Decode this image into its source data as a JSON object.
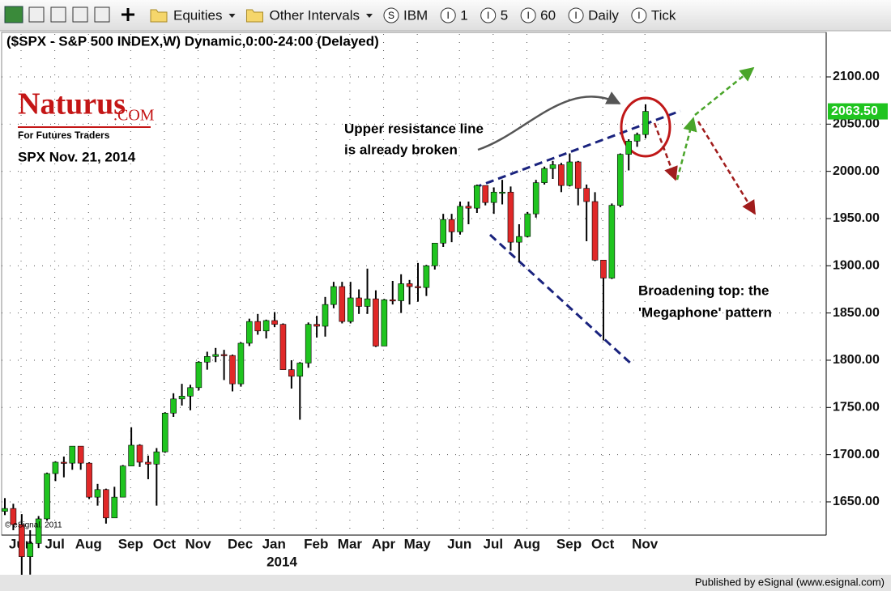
{
  "toolbar": [
    {
      "label": "Equities"
    },
    {
      "label": "Other Intervals"
    },
    {
      "icon": "S",
      "label": "IBM"
    },
    {
      "icon": "I",
      "label": "1"
    },
    {
      "icon": "I",
      "label": "5"
    },
    {
      "icon": "I",
      "label": "60"
    },
    {
      "icon": "I",
      "label": "Daily"
    },
    {
      "icon": "I",
      "label": "Tick"
    }
  ],
  "footer": "Published by eSignal (www.esignal.com)",
  "chart_data": {
    "type": "candlestick",
    "title": "($SPX - S&P 500 INDEX,W) Dynamic,0:00-24:00 (Delayed)",
    "logo": {
      "name": "Naturus",
      "suffix": ".COM",
      "tagline": "For Futures Traders"
    },
    "subtitle": "SPX Nov. 21, 2014",
    "copyright": "© eSignal, 2011",
    "annotations": [
      "Upper resistance line",
      "is already broken",
      "Broadening top: the",
      "'Megaphone' pattern"
    ],
    "year_label": "2014",
    "categories": [
      "Jun",
      null,
      null,
      null,
      "Jul",
      null,
      null,
      null,
      "Aug",
      null,
      null,
      null,
      null,
      "Sep",
      null,
      null,
      null,
      "Oct",
      null,
      null,
      null,
      "Nov",
      null,
      null,
      null,
      null,
      "Dec",
      null,
      null,
      null,
      "Jan",
      null,
      null,
      null,
      null,
      "Feb",
      null,
      null,
      null,
      "Mar",
      null,
      null,
      null,
      "Apr",
      null,
      null,
      null,
      "May",
      null,
      null,
      null,
      null,
      "Jun",
      null,
      null,
      null,
      "Jul",
      null,
      null,
      null,
      "Aug",
      null,
      null,
      null,
      null,
      "Sep",
      null,
      null,
      null,
      "Oct",
      null,
      null,
      null,
      null,
      "Nov",
      null,
      null
    ],
    "open": [
      1640,
      1643,
      1626,
      1592,
      1606,
      1632,
      1680,
      1692,
      1691,
      1709,
      1691,
      1655,
      1663,
      1633,
      1655,
      1688,
      1710,
      1692,
      1690,
      1703,
      1744,
      1759,
      1762,
      1771,
      1798,
      1804,
      1806,
      1805,
      1775,
      1818,
      1841,
      1831,
      1842,
      1838,
      1790,
      1783,
      1797,
      1838,
      1836,
      1859,
      1878,
      1841,
      1866,
      1857,
      1865,
      1815,
      1864,
      1863,
      1881,
      1878,
      1877,
      1900,
      1924,
      1949,
      1936,
      1963,
      1961,
      1985,
      1967,
      1978,
      1978,
      1925,
      1931,
      1955,
      1988,
      2003,
      2007,
      1985,
      2010,
      1982,
      1968,
      1906,
      1887,
      1964,
      2018,
      2032,
      2039
    ],
    "high": [
      1654,
      1648,
      1637,
      1620,
      1635,
      1681,
      1693,
      1698,
      1709,
      1709,
      1692,
      1669,
      1664,
      1666,
      1689,
      1729,
      1711,
      1699,
      1707,
      1745,
      1765,
      1775,
      1774,
      1799,
      1809,
      1813,
      1811,
      1806,
      1819,
      1844,
      1849,
      1843,
      1851,
      1839,
      1800,
      1798,
      1840,
      1847,
      1867,
      1883,
      1883,
      1883,
      1875,
      1897,
      1874,
      1865,
      1884,
      1891,
      1885,
      1903,
      1901,
      1924,
      1955,
      1955,
      1968,
      1968,
      1986,
      1985,
      1983,
      1991,
      1984,
      1944,
      1957,
      1991,
      2005,
      2011,
      2009,
      2019,
      2011,
      1986,
      1978,
      1906,
      1966,
      2019,
      2034,
      2041,
      2071
    ],
    "low": [
      1636,
      1620,
      1560,
      1573,
      1601,
      1630,
      1672,
      1676,
      1684,
      1684,
      1653,
      1646,
      1627,
      1633,
      1655,
      1688,
      1687,
      1674,
      1646,
      1702,
      1740,
      1752,
      1747,
      1768,
      1790,
      1798,
      1779,
      1767,
      1772,
      1815,
      1827,
      1823,
      1835,
      1790,
      1770,
      1737,
      1792,
      1824,
      1825,
      1855,
      1839,
      1839,
      1849,
      1849,
      1814,
      1815,
      1859,
      1850,
      1859,
      1862,
      1868,
      1896,
      1920,
      1925,
      1933,
      1944,
      1956,
      1964,
      1955,
      1965,
      1916,
      1904,
      1930,
      1951,
      1986,
      1992,
      1978,
      1984,
      1964,
      1926,
      1905,
      1821,
      1886,
      1962,
      2001,
      2026,
      2035
    ],
    "close": [
      1643,
      1626,
      1592,
      1606,
      1632,
      1680,
      1692,
      1691,
      1709,
      1691,
      1655,
      1663,
      1633,
      1655,
      1688,
      1710,
      1692,
      1690,
      1703,
      1744,
      1759,
      1762,
      1771,
      1798,
      1804,
      1806,
      1805,
      1775,
      1818,
      1841,
      1831,
      1842,
      1838,
      1790,
      1783,
      1797,
      1838,
      1836,
      1859,
      1878,
      1841,
      1866,
      1857,
      1865,
      1815,
      1864,
      1863,
      1881,
      1878,
      1877,
      1900,
      1924,
      1949,
      1936,
      1963,
      1961,
      1985,
      1967,
      1978,
      1978,
      1925,
      1931,
      1955,
      1988,
      2003,
      2007,
      1985,
      2010,
      1982,
      1968,
      1906,
      1887,
      1964,
      2018,
      2032,
      2039,
      2063.5
    ],
    "up_color": "#1fc41f",
    "down_color": "#e02828",
    "ylim": [
      1615,
      2145
    ],
    "yticks": [
      {
        "value": 1650,
        "label": "1650.00"
      },
      {
        "value": 1700,
        "label": "1700.00"
      },
      {
        "value": 1750,
        "label": "1750.00"
      },
      {
        "value": 1800,
        "label": "1800.00"
      },
      {
        "value": 1850,
        "label": "1850.00"
      },
      {
        "value": 1900,
        "label": "1900.00"
      },
      {
        "value": 1950,
        "label": "1950.00"
      },
      {
        "value": 2000,
        "label": "2000.00"
      },
      {
        "value": 2050,
        "label": "2050.00"
      },
      {
        "value": 2100,
        "label": "2100.00"
      }
    ],
    "last_price": 2063.5,
    "last_price_label": "2063.50",
    "grid": true
  }
}
